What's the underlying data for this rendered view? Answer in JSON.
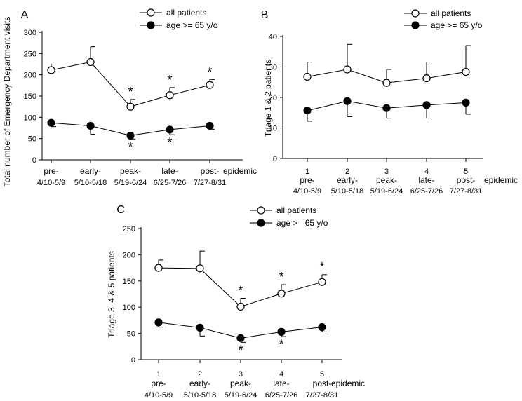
{
  "chart_data": [
    {
      "panel": "A",
      "type": "line",
      "ylabel": "Total number of Emergency Department visits",
      "ylim": [
        0,
        300
      ],
      "yticks": [
        0,
        50,
        100,
        150,
        200,
        250,
        300
      ],
      "x_numbers": [],
      "categories": [
        "pre-",
        "early-",
        "peak-",
        "late-",
        "post-"
      ],
      "dates": [
        "4/10-5/9",
        "5/10-5/18",
        "5/19-6/24",
        "6/25-7/26",
        "7/27-8/31"
      ],
      "xlabel": "epidemic",
      "series": [
        {
          "name": "all patients",
          "marker": "open",
          "values": [
            211,
            230,
            125,
            152,
            176
          ],
          "errors": [
            14,
            36,
            17,
            18,
            13
          ],
          "significant": [
            false,
            false,
            true,
            true,
            true
          ]
        },
        {
          "name": "age  >= 65 y/o",
          "marker": "filled",
          "values": [
            87,
            80,
            57,
            71,
            80
          ],
          "errors": [
            9,
            20,
            8,
            12,
            8
          ],
          "significant": [
            false,
            false,
            true,
            true,
            false
          ]
        }
      ],
      "significance_marker": "*"
    },
    {
      "panel": "B",
      "type": "line",
      "ylabel": "Triage 1 & 2 patients",
      "ylim": [
        0,
        40
      ],
      "yticks": [
        0,
        10,
        20,
        30,
        40
      ],
      "x_numbers": [
        "1",
        "2",
        "3",
        "4",
        "5"
      ],
      "categories": [
        "pre-",
        "early-",
        "peak-",
        "late-",
        "post-"
      ],
      "dates": [
        "4/10-5/9",
        "5/10-5/18",
        "5/19-6/24",
        "6/25-7/26",
        "7/27-8/31"
      ],
      "xlabel": "epidemic",
      "series": [
        {
          "name": "all patients",
          "marker": "open",
          "values": [
            26.8,
            29.2,
            24.8,
            26.3,
            28.4
          ],
          "errors": [
            4.8,
            8.2,
            4.4,
            5.3,
            8.6
          ],
          "significant": [
            false,
            false,
            false,
            false,
            false
          ]
        },
        {
          "name": "age >= 65 y/o",
          "marker": "filled",
          "values": [
            15.7,
            18.8,
            16.5,
            17.5,
            18.3
          ],
          "errors": [
            3.5,
            5.1,
            3.3,
            4.3,
            3.8
          ],
          "significant": [
            false,
            false,
            false,
            false,
            false
          ]
        }
      ],
      "significance_marker": "*"
    },
    {
      "panel": "C",
      "type": "line",
      "ylabel": "Triage 3, 4 & 5 patients",
      "ylim": [
        0,
        250
      ],
      "yticks": [
        0,
        50,
        100,
        150,
        200,
        250
      ],
      "x_numbers": [
        "1",
        "2",
        "3",
        "4",
        "5"
      ],
      "categories": [
        "pre-",
        "early-",
        "peak-",
        "late-",
        "post-"
      ],
      "dates": [
        "4/10-5/9",
        "5/10-5/18",
        "5/19-6/24",
        "6/25-7/26",
        "7/27-8/31"
      ],
      "xlabel": "epidemic",
      "series": [
        {
          "name": "all patients",
          "marker": "open",
          "values": [
            175,
            174,
            101,
            126,
            148
          ],
          "errors": [
            15,
            33,
            16,
            17,
            14
          ],
          "significant": [
            false,
            false,
            true,
            true,
            true
          ]
        },
        {
          "name": "age  >= 65 y/o",
          "marker": "filled",
          "values": [
            71,
            61,
            41,
            53,
            62
          ],
          "errors": [
            9,
            16,
            8,
            9,
            9
          ],
          "significant": [
            false,
            false,
            true,
            true,
            false
          ]
        }
      ],
      "significance_marker": "*"
    }
  ]
}
